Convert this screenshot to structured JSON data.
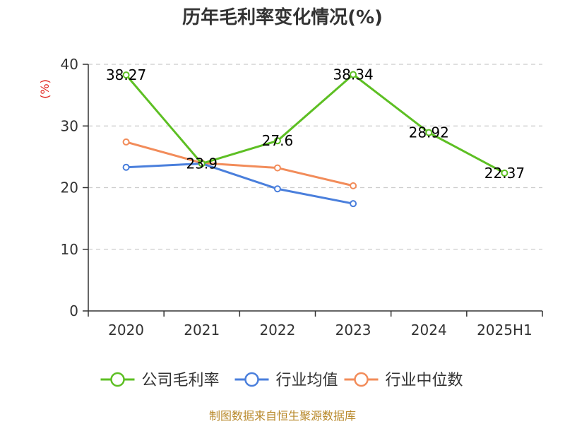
{
  "chart_data": {
    "type": "line",
    "title": "历年毛利率变化情况(%)",
    "ylabel": "(%)",
    "xlabel": "",
    "categories": [
      "2020",
      "2021",
      "2022",
      "2023",
      "2024",
      "2025H1"
    ],
    "ylim": [
      0,
      40
    ],
    "yticks": [
      0,
      10,
      20,
      30,
      40
    ],
    "grid": "horizontal-dashed",
    "legend_position": "bottom",
    "series": [
      {
        "name": "公司毛利率",
        "color": "#5dbf23",
        "values": [
          38.27,
          23.9,
          27.6,
          38.34,
          28.92,
          22.37
        ],
        "labels": [
          "38.27",
          "23.9",
          "27.6",
          "38.34",
          "28.92",
          "22.37"
        ]
      },
      {
        "name": "行业均值",
        "color": "#4a7fdc",
        "values": [
          23.3,
          23.9,
          19.8,
          17.4,
          null,
          null
        ]
      },
      {
        "name": "行业中位数",
        "color": "#f28c5a",
        "values": [
          27.4,
          24.0,
          23.2,
          20.3,
          null,
          null
        ]
      }
    ]
  },
  "footer": {
    "source": "制图数据来自恒生聚源数据库"
  }
}
